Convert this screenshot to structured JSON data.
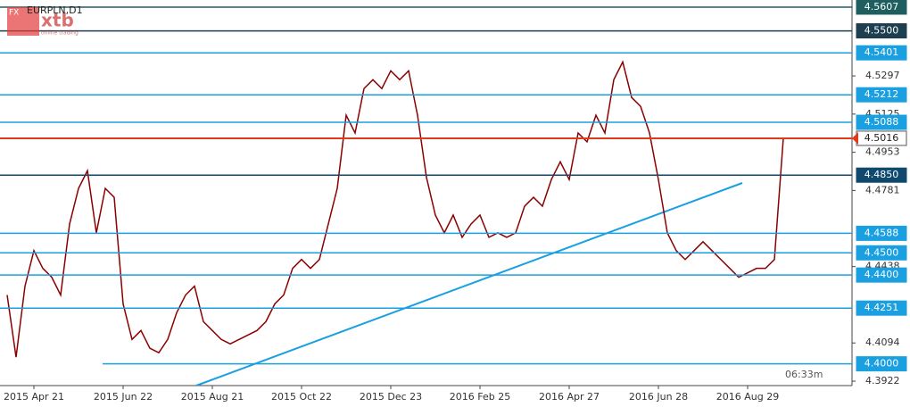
{
  "chart_data": {
    "type": "line",
    "title": "EURPLN,D1",
    "logo": {
      "badge": "FX",
      "name": "xtb",
      "tagline": "online trading"
    },
    "timer": "06:33m",
    "categories": [
      null,
      null,
      null,
      "2015 Apr 21",
      null,
      null,
      null,
      null,
      null,
      null,
      null,
      null,
      null,
      "2015 Jun 22",
      null,
      null,
      null,
      null,
      null,
      null,
      null,
      null,
      null,
      "2015 Aug 21",
      null,
      null,
      null,
      null,
      null,
      null,
      null,
      null,
      null,
      "2015 Oct 22",
      null,
      null,
      null,
      null,
      null,
      null,
      null,
      null,
      null,
      "2015 Dec 23",
      null,
      null,
      null,
      null,
      null,
      null,
      null,
      null,
      null,
      "2016 Feb 25",
      null,
      null,
      null,
      null,
      null,
      null,
      null,
      null,
      null,
      "2016 Apr 27",
      null,
      null,
      null,
      null,
      null,
      null,
      null,
      null,
      null,
      "2016 Jun 28",
      null,
      null,
      null,
      null,
      null,
      null,
      null,
      null,
      null,
      "2016 Aug 29",
      null,
      null,
      null,
      null
    ],
    "series": [
      {
        "name": "EURPLN",
        "color": "#8b0000",
        "values": [
          4.431,
          4.403,
          4.435,
          4.451,
          4.443,
          4.439,
          4.431,
          4.463,
          4.479,
          4.487,
          4.459,
          4.479,
          4.475,
          4.427,
          4.411,
          4.415,
          4.407,
          4.405,
          4.411,
          4.423,
          4.431,
          4.435,
          4.419,
          4.415,
          4.411,
          4.409,
          4.411,
          4.413,
          4.415,
          4.419,
          4.427,
          4.431,
          4.443,
          4.447,
          4.443,
          4.447,
          4.463,
          4.479,
          4.512,
          4.504,
          4.524,
          4.528,
          4.524,
          4.532,
          4.528,
          4.532,
          4.512,
          4.484,
          4.467,
          4.459,
          4.467,
          4.457,
          4.463,
          4.467,
          4.457,
          4.459,
          4.457,
          4.459,
          4.471,
          4.475,
          4.471,
          4.483,
          4.491,
          4.483,
          4.504,
          4.5,
          4.512,
          4.504,
          4.528,
          4.536,
          4.52,
          4.516,
          4.504,
          4.483,
          4.459,
          4.451,
          4.447,
          4.451,
          4.455,
          4.451,
          4.447,
          4.443,
          4.439,
          4.441,
          4.443,
          4.443,
          4.447,
          4.5016
        ]
      }
    ],
    "ylim": [
      4.3902,
      4.5639
    ],
    "yticks": [
      4.5297,
      4.5125,
      4.4953,
      4.4781,
      4.4438,
      4.4094,
      4.3922
    ],
    "levels": [
      {
        "value": 4.5607,
        "color": "#1e5e5e"
      },
      {
        "value": 4.55,
        "label": "4.5500",
        "color": "#1d3f4f"
      },
      {
        "value": 4.5401,
        "color": "#1aa0e0"
      },
      {
        "value": 4.5212,
        "color": "#1aa0e0"
      },
      {
        "value": 4.5088,
        "color": "#1aa0e0"
      },
      {
        "value": 4.5016,
        "color": "#e03a1a"
      },
      {
        "value": 4.485,
        "label": "4.4850",
        "color": "#0f4a6e"
      },
      {
        "value": 4.4588,
        "color": "#1aa0e0"
      },
      {
        "value": 4.45,
        "label": "4.4500",
        "color": "#1aa0e0"
      },
      {
        "value": 4.44,
        "label": "4.4400",
        "color": "#1aa0e0"
      },
      {
        "value": 4.4251,
        "color": "#1aa0e0"
      },
      {
        "value": 4.4,
        "label": "4.4000",
        "color": "#1aa0e0"
      }
    ]
  }
}
